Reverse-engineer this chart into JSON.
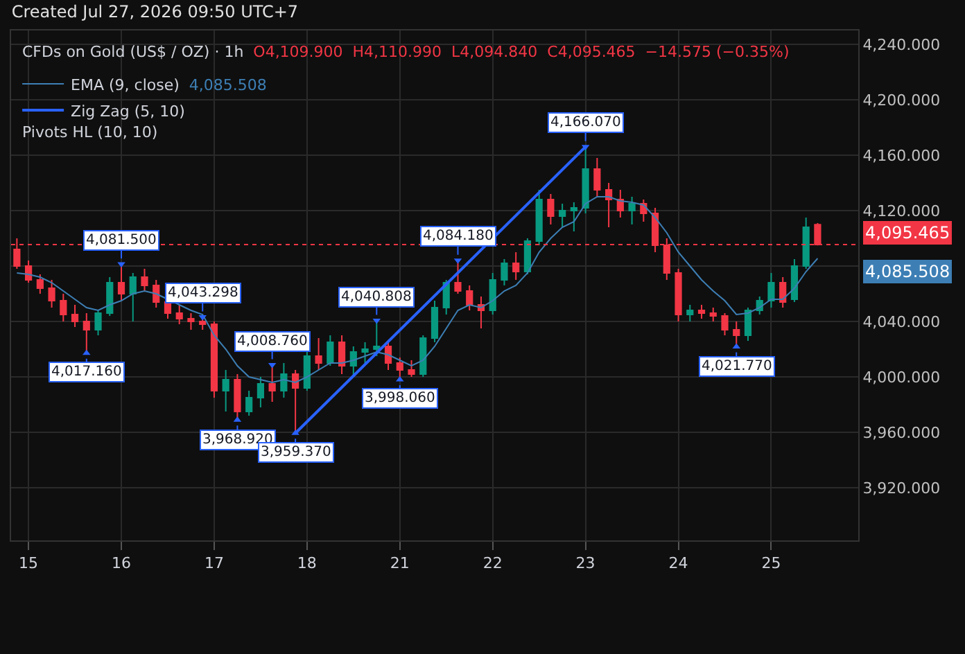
{
  "chart_data": {
    "type": "candlestick",
    "title": "Created Jul 27, 2026 09:50 UTC+7",
    "subtitle": "CFDs on Gold (US$ / OZ) · 1h",
    "categories": [
      null,
      "15",
      null,
      null,
      null,
      null,
      null,
      null,
      null,
      "16",
      null,
      null,
      null,
      null,
      null,
      null,
      null,
      "17",
      null,
      null,
      null,
      null,
      null,
      null,
      null,
      "18",
      null,
      null,
      null,
      null,
      null,
      null,
      null,
      "21",
      null,
      null,
      null,
      null,
      null,
      null,
      null,
      "22",
      null,
      null,
      null,
      null,
      null,
      null,
      null,
      "23",
      null,
      null,
      null,
      null,
      null,
      null,
      null,
      "24",
      null,
      null,
      null,
      null,
      null,
      null,
      null,
      "25",
      null,
      null,
      null,
      null
    ],
    "ohlc": [
      [
        4092,
        4100,
        4078,
        4080
      ],
      [
        4080,
        4084,
        4068,
        4070
      ],
      [
        4070,
        4074,
        4060,
        4064
      ],
      [
        4064,
        4070,
        4050,
        4055
      ],
      [
        4055,
        4060,
        4040,
        4045
      ],
      [
        4045,
        4052,
        4036,
        4040
      ],
      [
        4040,
        4046,
        4017.16,
        4034
      ],
      [
        4034,
        4048,
        4030,
        4046
      ],
      [
        4046,
        4072,
        4044,
        4068
      ],
      [
        4068,
        4081.5,
        4055,
        4060
      ],
      [
        4060,
        4075,
        4040,
        4072
      ],
      [
        4072,
        4078,
        4062,
        4066
      ],
      [
        4066,
        4070,
        4050,
        4054
      ],
      [
        4054,
        4055,
        4042,
        4046
      ],
      [
        4046,
        4052,
        4038,
        4042
      ],
      [
        4042,
        4046,
        4034,
        4040
      ],
      [
        4040,
        4043.298,
        4034,
        4038
      ],
      [
        4038,
        4040,
        3985,
        3990
      ],
      [
        3990,
        4005,
        3975,
        3998
      ],
      [
        3998,
        4002,
        3968.92,
        3975
      ],
      [
        3975,
        3990,
        3972,
        3985
      ],
      [
        3985,
        4000,
        3978,
        3995
      ],
      [
        3995,
        4008.76,
        3982,
        3990
      ],
      [
        3990,
        4010,
        3985,
        4002
      ],
      [
        4002,
        4005,
        3959.37,
        3992
      ],
      [
        3992,
        4020,
        3990,
        4015
      ],
      [
        4015,
        4028,
        4005,
        4010
      ],
      [
        4010,
        4030,
        4008,
        4025
      ],
      [
        4025,
        4030,
        4002,
        4008
      ],
      [
        4008,
        4022,
        4000,
        4018
      ],
      [
        4018,
        4025,
        4010,
        4020
      ],
      [
        4020,
        4040.808,
        4015,
        4022
      ],
      [
        4022,
        4025,
        4005,
        4010
      ],
      [
        4010,
        4014,
        3998.06,
        4005
      ],
      [
        4005,
        4012,
        4000,
        4002
      ],
      [
        4002,
        4030,
        4000,
        4028
      ],
      [
        4028,
        4055,
        4025,
        4050
      ],
      [
        4050,
        4070,
        4045,
        4068
      ],
      [
        4068,
        4084.18,
        4060,
        4062
      ],
      [
        4062,
        4066,
        4048,
        4052
      ],
      [
        4052,
        4058,
        4035,
        4048
      ],
      [
        4048,
        4075,
        4045,
        4070
      ],
      [
        4070,
        4085,
        4066,
        4082
      ],
      [
        4082,
        4090,
        4070,
        4076
      ],
      [
        4076,
        4100,
        4074,
        4098
      ],
      [
        4098,
        4135,
        4095,
        4128
      ],
      [
        4128,
        4132,
        4110,
        4116
      ],
      [
        4116,
        4125,
        4108,
        4120
      ],
      [
        4120,
        4126,
        4105,
        4122
      ],
      [
        4122,
        4166.07,
        4118,
        4150
      ],
      [
        4150,
        4158,
        4130,
        4135
      ],
      [
        4135,
        4140,
        4108,
        4128
      ],
      [
        4128,
        4135,
        4115,
        4120
      ],
      [
        4120,
        4130,
        4110,
        4125
      ],
      [
        4125,
        4128,
        4112,
        4118
      ],
      [
        4118,
        4122,
        4090,
        4095
      ],
      [
        4095,
        4100,
        4070,
        4075
      ],
      [
        4075,
        4078,
        4040,
        4045
      ],
      [
        4045,
        4052,
        4040,
        4048
      ],
      [
        4048,
        4052,
        4042,
        4046
      ],
      [
        4046,
        4050,
        4040,
        4044
      ],
      [
        4044,
        4046,
        4030,
        4034
      ],
      [
        4034,
        4040,
        4021.77,
        4030
      ],
      [
        4030,
        4050,
        4026,
        4048
      ],
      [
        4048,
        4058,
        4045,
        4055
      ],
      [
        4055,
        4075,
        4050,
        4068
      ],
      [
        4068,
        4072,
        4050,
        4054
      ],
      [
        4056,
        4085,
        4054,
        4080
      ],
      [
        4080,
        4115,
        4078,
        4108
      ],
      [
        4109.9,
        4110.99,
        4094.84,
        4095.465
      ]
    ],
    "series": [
      {
        "type": "line",
        "name": "EMA (9, close)",
        "color": "#3d7fb5",
        "values": [
          4075,
          4074,
          4072,
          4068,
          4062,
          4056,
          4050,
          4048,
          4052,
          4055,
          4060,
          4062,
          4060,
          4056,
          4052,
          4048,
          4045,
          4030,
          4020,
          4008,
          4000,
          3998,
          3996,
          3998,
          3996,
          4000,
          4005,
          4010,
          4010,
          4012,
          4015,
          4018,
          4016,
          4012,
          4008,
          4012,
          4022,
          4035,
          4048,
          4052,
          4050,
          4055,
          4062,
          4066,
          4075,
          4090,
          4100,
          4108,
          4112,
          4125,
          4130,
          4130,
          4127,
          4126,
          4124,
          4115,
          4104,
          4090,
          4080,
          4070,
          4062,
          4055,
          4045,
          4046,
          4050,
          4056,
          4056,
          4064,
          4076,
          4085.5
        ]
      },
      {
        "type": "line",
        "name": "Zig Zag (5, 10)",
        "color": "#2962ff",
        "values": [
          null,
          null,
          null,
          null,
          null,
          null,
          null,
          null,
          null,
          null,
          null,
          null,
          null,
          null,
          null,
          null,
          null,
          null,
          null,
          null,
          null,
          null,
          null,
          null,
          3959.37,
          null,
          null,
          null,
          null,
          null,
          null,
          null,
          null,
          null,
          null,
          null,
          null,
          null,
          null,
          null,
          null,
          null,
          null,
          null,
          null,
          null,
          null,
          null,
          null,
          4166.07,
          null,
          null,
          null,
          null,
          null,
          null,
          null,
          null,
          null,
          null,
          null,
          null,
          null,
          null,
          null,
          null,
          null,
          null,
          null,
          null
        ]
      },
      {
        "type": "scatter",
        "color": "#2962ff",
        "marker": "triangle",
        "values": [
          null,
          null,
          null,
          null,
          null,
          null,
          4017.16,
          null,
          null,
          4081.5,
          null,
          null,
          null,
          null,
          null,
          null,
          4043.298,
          null,
          null,
          3968.92,
          null,
          null,
          4008.76,
          null,
          3959.37,
          null,
          null,
          null,
          null,
          null,
          null,
          4040.808,
          null,
          3998.06,
          null,
          null,
          null,
          null,
          4084.18,
          null,
          null,
          null,
          null,
          null,
          null,
          null,
          null,
          null,
          null,
          4166.07,
          null,
          null,
          null,
          null,
          null,
          null,
          null,
          null,
          null,
          null,
          null,
          null,
          4021.77,
          null,
          null,
          null,
          null,
          null,
          null,
          null
        ],
        "value_labels": [
          null,
          null,
          null,
          null,
          null,
          null,
          "4,017.160",
          null,
          null,
          "4,081.500",
          null,
          null,
          null,
          null,
          null,
          null,
          "4,043.298",
          null,
          null,
          "3,968.920",
          null,
          null,
          "4,008.760",
          null,
          "3,959.370",
          null,
          null,
          null,
          null,
          null,
          null,
          "4,040.808",
          null,
          "3,998.060",
          null,
          null,
          null,
          null,
          "4,084.180",
          null,
          null,
          null,
          null,
          null,
          null,
          null,
          null,
          null,
          null,
          "4,166.070",
          null,
          null,
          null,
          null,
          null,
          null,
          null,
          null,
          null,
          null,
          null,
          null,
          "4,021.770",
          null,
          null,
          null,
          null,
          null,
          null,
          null
        ]
      }
    ],
    "ylim": [
      3882,
      4250
    ],
    "yticks": [
      {
        "value": 3920,
        "label": "3,920.000"
      },
      {
        "value": 3960,
        "label": "3,960.000"
      },
      {
        "value": 4000,
        "label": "4,000.000"
      },
      {
        "value": 4040,
        "label": "4,040.000"
      },
      {
        "value": 4080,
        "label": null
      },
      {
        "value": 4120,
        "label": "4,120.000"
      },
      {
        "value": 4160,
        "label": "4,160.000"
      },
      {
        "value": 4200,
        "label": "4,200.000"
      },
      {
        "value": 4240,
        "label": "4,240.000"
      }
    ],
    "ref_lines": [
      {
        "axis": "y",
        "value": 4095.465,
        "label": "4,095.465",
        "color": "#f23645",
        "line_style": "dotted"
      }
    ],
    "annotations": [
      "O4,109.900  H4,110.990  L4,094.840  C4,095.465  −14.575 (−0.35%)",
      "Pivots HL (10, 10)",
      "4,085.508"
    ],
    "grid": true,
    "legend": "top left"
  }
}
